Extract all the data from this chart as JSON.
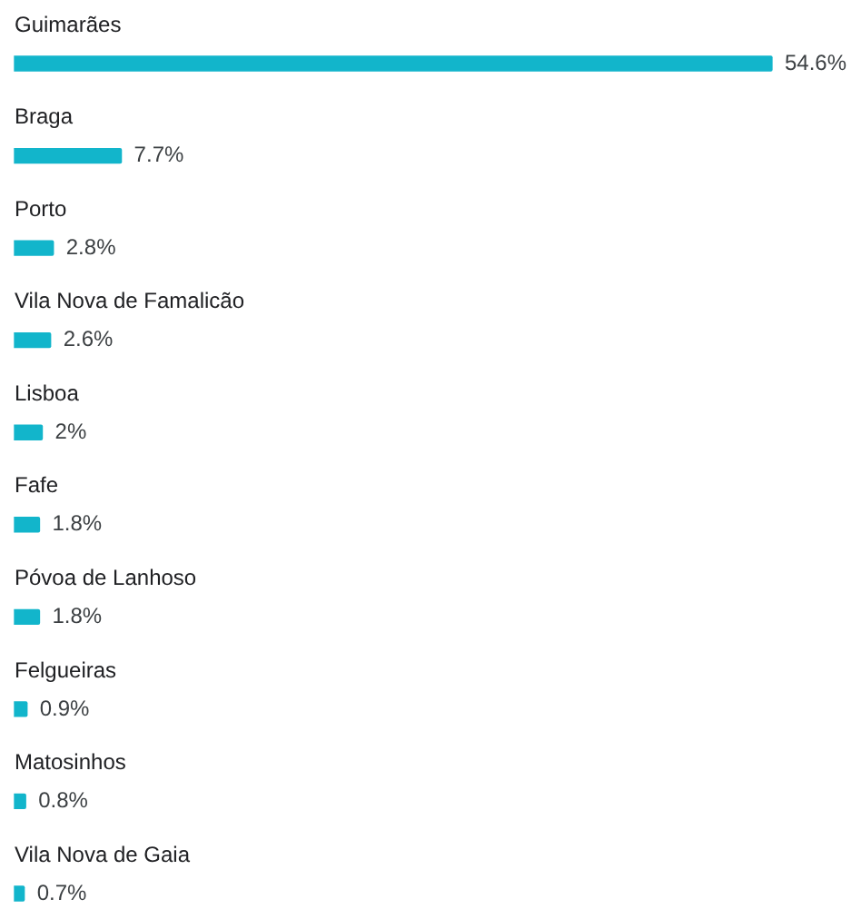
{
  "chart_data": {
    "type": "bar",
    "orientation": "horizontal",
    "categories": [
      "Guimarães",
      "Braga",
      "Porto",
      "Vila Nova de Famalicão",
      "Lisboa",
      "Fafe",
      "Póvoa de Lanhoso",
      "Felgueiras",
      "Matosinhos",
      "Vila Nova de Gaia"
    ],
    "values": [
      54.6,
      7.7,
      2.8,
      2.6,
      2,
      1.8,
      1.8,
      0.9,
      0.8,
      0.7
    ],
    "value_labels": [
      "54.6%",
      "7.7%",
      "2.8%",
      "2.6%",
      "2%",
      "1.8%",
      "1.8%",
      "0.9%",
      "0.8%",
      "0.7%"
    ],
    "color": "#12b5cb",
    "legend": false
  }
}
